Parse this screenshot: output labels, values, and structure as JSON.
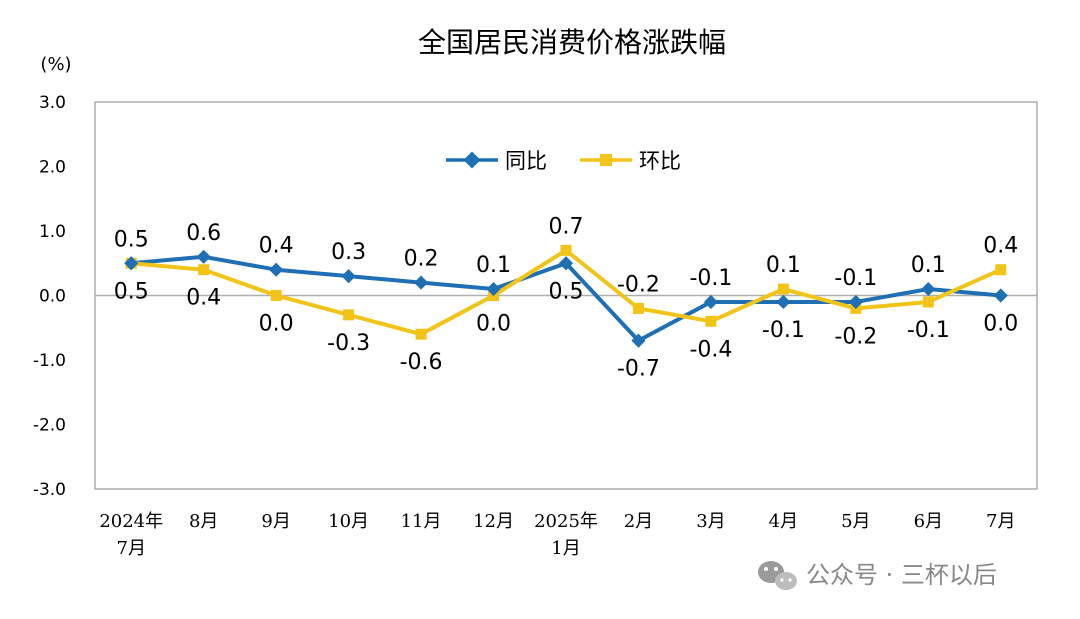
{
  "chart_data": {
    "type": "line",
    "title": "全国居民消费价格涨跌幅",
    "unit_label": "(%)",
    "ylim": [
      -3.0,
      3.0
    ],
    "yticks": [
      "3.0",
      "2.0",
      "1.0",
      "0.0",
      "-1.0",
      "-2.0",
      "-3.0"
    ],
    "categories": [
      [
        "2024年",
        "7月"
      ],
      [
        "8月"
      ],
      [
        "9月"
      ],
      [
        "10月"
      ],
      [
        "11月"
      ],
      [
        "12月"
      ],
      [
        "2025年",
        "1月"
      ],
      [
        "2月"
      ],
      [
        "3月"
      ],
      [
        "4月"
      ],
      [
        "5月"
      ],
      [
        "6月"
      ],
      [
        "7月"
      ]
    ],
    "series": [
      {
        "name": "同比",
        "color": "#1f6fb5",
        "marker": "diamond",
        "values": [
          0.5,
          0.6,
          0.4,
          0.3,
          0.2,
          0.1,
          0.5,
          -0.7,
          -0.1,
          -0.1,
          -0.1,
          0.1,
          0.0
        ],
        "labels": [
          "0.5",
          "0.6",
          "0.4",
          "0.3",
          "0.2",
          "0.1",
          "0.5",
          "-0.7",
          "-0.1",
          "-0.1",
          "-0.1",
          "0.1",
          "0.0"
        ]
      },
      {
        "name": "环比",
        "color": "#f2c418",
        "marker": "square",
        "values": [
          0.5,
          0.4,
          0.0,
          -0.3,
          -0.6,
          0.0,
          0.7,
          -0.2,
          -0.4,
          0.1,
          -0.2,
          -0.1,
          0.4
        ],
        "labels": [
          "0.5",
          "0.4",
          "0.0",
          "-0.3",
          "-0.6",
          "0.0",
          "0.7",
          "-0.2",
          "-0.4",
          "0.1",
          "-0.2",
          "-0.1",
          "0.4"
        ]
      }
    ],
    "grid": false,
    "legend_position": "top-center"
  },
  "watermark": {
    "text": "公众号 · 三杯以后",
    "icon": "wechat-icon"
  }
}
